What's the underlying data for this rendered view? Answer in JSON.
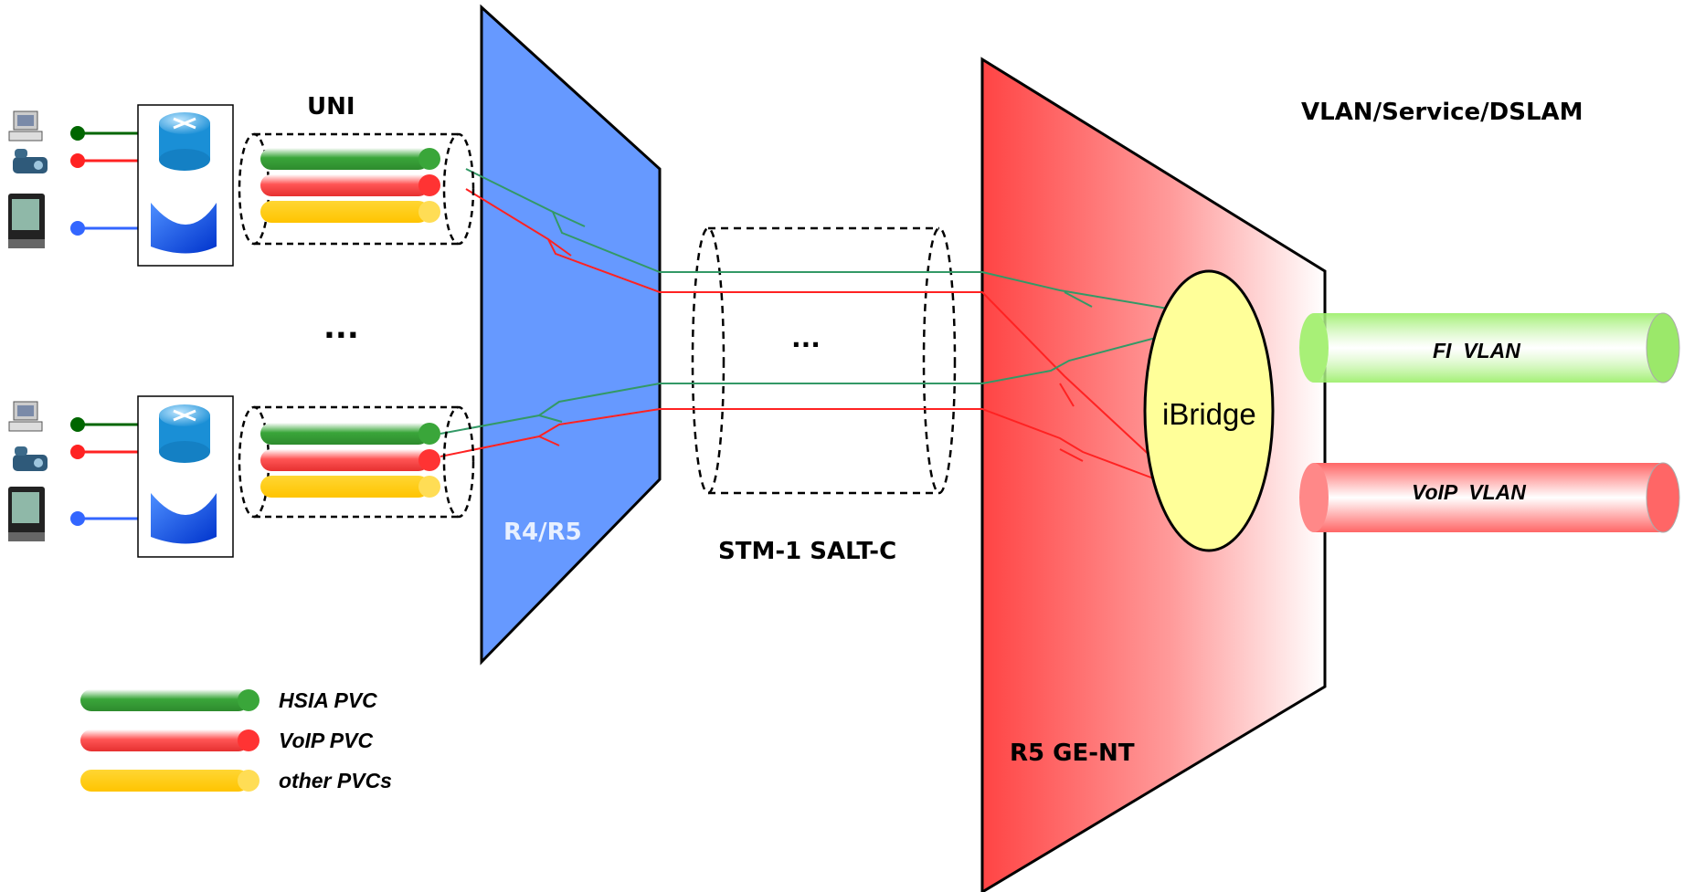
{
  "labels": {
    "uni": "UNI",
    "vlan_service": "VLAN/Service/DSLAM",
    "ellipsis_left": "...",
    "ellipsis_mid": "...",
    "r4r5": "R4/R5",
    "stm1": "STM-1 SALT-C",
    "r5gent": "R5 GE-NT",
    "ibridge": "iBridge",
    "fi_vlan": "FI  VLAN",
    "voip_vlan": "VoIP  VLAN"
  },
  "legend": [
    {
      "label": "HSIA PVC",
      "color": "#3aa63a"
    },
    {
      "label": "VoIP PVC",
      "color": "#ff3333"
    },
    {
      "label": "other PVCs",
      "color": "#ffcc00"
    }
  ],
  "colors": {
    "r4r5_panel": "#6699ff",
    "r5gent_panel": "#ff4444",
    "ibridge_fill": "#ffff99",
    "hsia_line": "#339966",
    "voip_line": "#ff2222",
    "video_line": "#3366ff",
    "data_line": "#006600"
  }
}
